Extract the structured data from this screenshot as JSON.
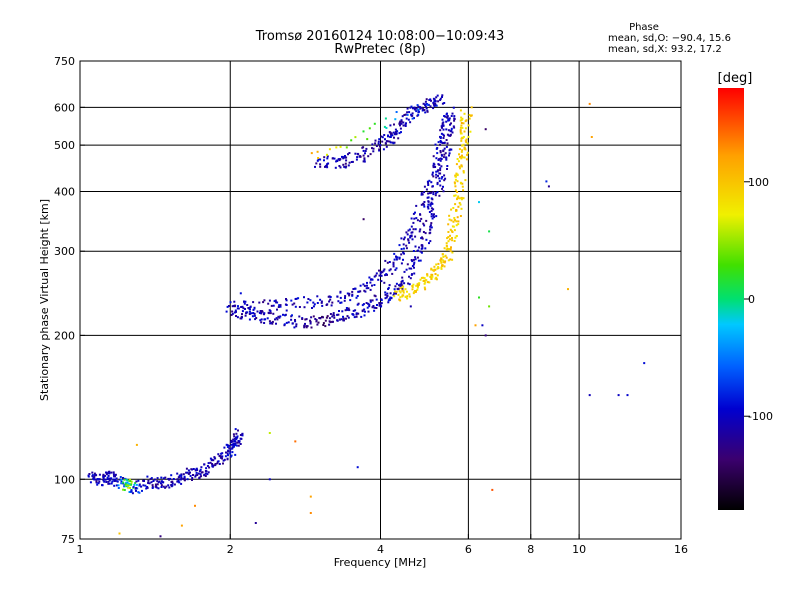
{
  "chart_data": {
    "type": "scatter",
    "title": "Tromsø 20160124 10:08:00−10:09:43",
    "subtitle": "RwPretec (8p)",
    "xlabel": "Frequency [MHz]",
    "ylabel": "Stationary phase Virtual Height [km]",
    "x_scale": "log",
    "y_scale": "log",
    "xlim": [
      1,
      16
    ],
    "ylim": [
      75,
      750
    ],
    "x_ticks": [
      1,
      2,
      4,
      6,
      8,
      10,
      16
    ],
    "x_tick_labels": [
      "1",
      "2",
      "4",
      "6",
      "8",
      "10",
      "16"
    ],
    "x_grid": [
      2,
      4,
      6,
      8,
      10
    ],
    "y_ticks": [
      75,
      100,
      200,
      300,
      400,
      500,
      600,
      750
    ],
    "y_tick_labels": [
      "75",
      "100",
      "200",
      "300",
      "400",
      "500",
      "600",
      "750"
    ],
    "y_grid": [
      100,
      200,
      300,
      400,
      500,
      600
    ],
    "stats": {
      "heading": "Phase",
      "line_o": "mean, sd,O: −90.4, 15.6",
      "line_x": "mean, sd,X:  93.2, 17.2"
    },
    "colorbar": {
      "label": "[deg]",
      "min": -180,
      "max": 180,
      "ticks": [
        100,
        0,
        -100
      ],
      "tick_labels": [
        "100",
        "0",
        "-100"
      ]
    },
    "traces": [
      {
        "name_hint": "E-layer trace",
        "points": [
          [
            1.05,
            101,
            -105
          ],
          [
            1.1,
            100,
            -110
          ],
          [
            1.15,
            101,
            -100
          ],
          [
            1.2,
            99,
            -110
          ],
          [
            1.25,
            97,
            60
          ],
          [
            1.3,
            96,
            -100
          ],
          [
            1.4,
            99,
            -110
          ],
          [
            1.5,
            98,
            -110
          ],
          [
            1.6,
            100,
            -105
          ],
          [
            1.7,
            103,
            -110
          ],
          [
            1.8,
            106,
            -105
          ],
          [
            1.9,
            110,
            -110
          ],
          [
            2.0,
            115,
            -100
          ],
          [
            2.05,
            120,
            -105
          ],
          [
            2.08,
            125,
            -110
          ]
        ]
      },
      {
        "name_hint": "F-layer O-mode lower branch",
        "points": [
          [
            2.0,
            225,
            -110
          ],
          [
            2.2,
            222,
            -105
          ],
          [
            2.4,
            218,
            -110
          ],
          [
            2.7,
            213,
            -100
          ],
          [
            3.0,
            214,
            -140
          ],
          [
            3.3,
            218,
            -110
          ],
          [
            3.6,
            225,
            -105
          ],
          [
            3.9,
            233,
            -110
          ],
          [
            4.2,
            244,
            -105
          ],
          [
            4.5,
            262,
            -110
          ],
          [
            4.8,
            300,
            -105
          ],
          [
            5.0,
            340,
            -110
          ],
          [
            5.2,
            400,
            -105
          ],
          [
            5.35,
            460,
            -110
          ],
          [
            5.45,
            530,
            -105
          ],
          [
            5.55,
            600,
            -110
          ]
        ]
      },
      {
        "name_hint": "F-layer O-mode upper branch",
        "points": [
          [
            2.0,
            228,
            -100
          ],
          [
            2.3,
            230,
            -110
          ],
          [
            2.7,
            232,
            -105
          ],
          [
            3.2,
            238,
            -110
          ],
          [
            3.6,
            248,
            -105
          ],
          [
            4.0,
            265,
            -110
          ],
          [
            4.3,
            290,
            -105
          ],
          [
            4.6,
            325,
            -110
          ],
          [
            4.85,
            370,
            -105
          ],
          [
            5.1,
            430,
            -110
          ],
          [
            5.3,
            500,
            -105
          ],
          [
            5.45,
            570,
            -110
          ]
        ]
      },
      {
        "name_hint": "F-layer X-mode",
        "points": [
          [
            4.3,
            240,
            95
          ],
          [
            4.6,
            248,
            90
          ],
          [
            4.9,
            258,
            95
          ],
          [
            5.2,
            272,
            90
          ],
          [
            5.4,
            290,
            95
          ],
          [
            5.55,
            320,
            90
          ],
          [
            5.65,
            360,
            95
          ],
          [
            5.75,
            410,
            90
          ],
          [
            5.85,
            470,
            95
          ],
          [
            5.9,
            530,
            90
          ],
          [
            5.95,
            590,
            95
          ]
        ]
      },
      {
        "name_hint": "spread echoes",
        "points": [
          [
            3.0,
            460,
            -110
          ],
          [
            3.3,
            460,
            -105
          ],
          [
            3.6,
            470,
            -120
          ],
          [
            4.0,
            500,
            -110
          ],
          [
            4.2,
            520,
            -105
          ],
          [
            4.4,
            560,
            -110
          ],
          [
            4.7,
            590,
            -100
          ],
          [
            5.0,
            610,
            -110
          ],
          [
            5.3,
            620,
            -105
          ],
          [
            2.9,
            470,
            110
          ]
        ]
      }
    ],
    "noise_points": [
      [
        12.0,
        150,
        -100
      ],
      [
        10.5,
        150,
        -105
      ],
      [
        10.5,
        610,
        130
      ],
      [
        10.6,
        520,
        120
      ],
      [
        13.5,
        175,
        -90
      ],
      [
        12.5,
        150,
        -95
      ],
      [
        8.7,
        410,
        -120
      ],
      [
        8.6,
        420,
        -80
      ],
      [
        6.5,
        540,
        -140
      ],
      [
        6.3,
        380,
        -20
      ],
      [
        6.6,
        330,
        10
      ],
      [
        6.3,
        240,
        20
      ],
      [
        6.4,
        210,
        -100
      ],
      [
        6.5,
        200,
        -130
      ],
      [
        6.2,
        210,
        120
      ],
      [
        6.7,
        95,
        150
      ],
      [
        4.6,
        230,
        -110
      ],
      [
        3.7,
        350,
        -140
      ],
      [
        2.7,
        120,
        140
      ],
      [
        2.9,
        85,
        130
      ],
      [
        2.4,
        100,
        -100
      ],
      [
        1.2,
        77,
        100
      ],
      [
        1.3,
        118,
        110
      ],
      [
        1.6,
        80,
        120
      ],
      [
        9.5,
        250,
        110
      ],
      [
        3.0,
        470,
        100
      ],
      [
        2.4,
        125,
        60
      ],
      [
        3.6,
        106,
        -90
      ],
      [
        2.25,
        81,
        -120
      ],
      [
        1.7,
        88,
        130
      ],
      [
        1.45,
        76,
        -130
      ],
      [
        2.9,
        92,
        120
      ],
      [
        2.1,
        245,
        -90
      ],
      [
        6.6,
        230,
        40
      ]
    ]
  }
}
